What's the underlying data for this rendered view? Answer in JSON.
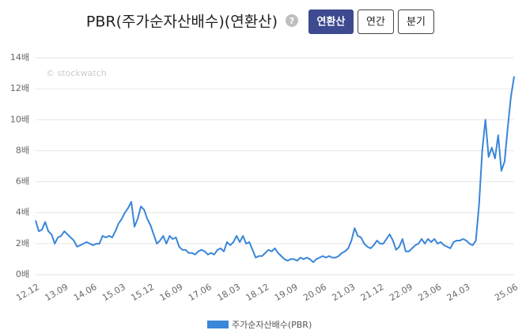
{
  "controls": {
    "help_icon": "?",
    "buttons": [
      "연환산",
      "연간",
      "분기"
    ]
  },
  "chart_data": {
    "type": "line",
    "title": "PBR(주가순자산배수)(연환산)",
    "watermark": "© stockwatch",
    "categories": [
      "12.12",
      null,
      null,
      null,
      null,
      null,
      null,
      null,
      null,
      "13.09",
      null,
      null,
      null,
      null,
      null,
      null,
      null,
      null,
      "14.06",
      null,
      null,
      null,
      null,
      null,
      null,
      null,
      null,
      "15.03",
      null,
      null,
      null,
      null,
      null,
      null,
      null,
      null,
      "15.12",
      null,
      null,
      null,
      null,
      null,
      null,
      null,
      null,
      "16.09",
      null,
      null,
      null,
      null,
      null,
      null,
      null,
      null,
      "17.06",
      null,
      null,
      null,
      null,
      null,
      null,
      null,
      null,
      "18.03",
      null,
      null,
      null,
      null,
      null,
      null,
      null,
      null,
      "18.12",
      null,
      null,
      null,
      null,
      null,
      null,
      null,
      null,
      "19.09",
      null,
      null,
      null,
      null,
      null,
      null,
      null,
      null,
      "20.06",
      null,
      null,
      null,
      null,
      null,
      null,
      null,
      null,
      "21.03",
      null,
      null,
      null,
      null,
      null,
      null,
      null,
      null,
      "21.12",
      null,
      null,
      null,
      null,
      null,
      null,
      null,
      null,
      "22.09",
      null,
      null,
      null,
      null,
      null,
      null,
      null,
      null,
      "23.06",
      null,
      null,
      null,
      null,
      null,
      null,
      null,
      null,
      "24.03",
      null,
      null,
      null,
      null,
      null,
      null,
      null,
      null,
      null,
      null,
      null,
      null,
      null,
      null,
      "25.06"
    ],
    "series": [
      {
        "name": "주가순자산배수(PBR)",
        "color": "#3a86d8",
        "values": [
          3.5,
          2.8,
          2.9,
          3.4,
          2.8,
          2.6,
          2.0,
          2.4,
          2.5,
          2.8,
          2.6,
          2.4,
          2.2,
          1.8,
          1.9,
          2.0,
          2.1,
          2.0,
          1.9,
          2.0,
          2.0,
          2.5,
          2.4,
          2.5,
          2.4,
          2.8,
          3.3,
          3.6,
          4.0,
          4.3,
          4.7,
          3.1,
          3.6,
          4.4,
          4.2,
          3.6,
          3.2,
          2.6,
          2.0,
          2.2,
          2.5,
          2.0,
          2.5,
          2.3,
          2.4,
          1.8,
          1.6,
          1.6,
          1.4,
          1.4,
          1.3,
          1.5,
          1.6,
          1.5,
          1.3,
          1.4,
          1.3,
          1.6,
          1.7,
          1.5,
          2.1,
          1.9,
          2.1,
          2.5,
          2.1,
          2.5,
          2.0,
          2.1,
          1.6,
          1.1,
          1.2,
          1.2,
          1.4,
          1.6,
          1.5,
          1.7,
          1.4,
          1.2,
          1.0,
          0.9,
          1.0,
          1.0,
          0.9,
          1.1,
          1.0,
          1.1,
          1.0,
          0.8,
          1.0,
          1.1,
          1.2,
          1.1,
          1.2,
          1.1,
          1.1,
          1.2,
          1.4,
          1.5,
          1.7,
          2.2,
          3.0,
          2.5,
          2.4,
          2.0,
          1.8,
          1.7,
          1.9,
          2.2,
          2.0,
          2.0,
          2.3,
          2.6,
          2.2,
          1.6,
          1.8,
          2.3,
          1.5,
          1.5,
          1.7,
          1.9,
          2.0,
          2.3,
          2.0,
          2.3,
          2.1,
          2.3,
          2.0,
          2.1,
          1.9,
          1.8,
          1.7,
          2.1,
          2.2,
          2.2,
          2.3,
          2.2,
          2.0,
          1.9,
          2.2,
          4.5,
          8.0,
          10.0,
          7.6,
          8.2,
          7.5,
          9.0,
          6.7,
          7.3,
          9.5,
          11.5,
          12.8
        ]
      }
    ],
    "ylim": [
      0,
      14
    ],
    "yticks": [
      {
        "value": 0,
        "label": "0배"
      },
      {
        "value": 2,
        "label": "2배"
      },
      {
        "value": 4,
        "label": "4배"
      },
      {
        "value": 6,
        "label": "6배"
      },
      {
        "value": 8,
        "label": "8배"
      },
      {
        "value": 10,
        "label": "10배"
      },
      {
        "value": 12,
        "label": "12배"
      },
      {
        "value": 14,
        "label": "14배"
      }
    ],
    "grid": true
  }
}
